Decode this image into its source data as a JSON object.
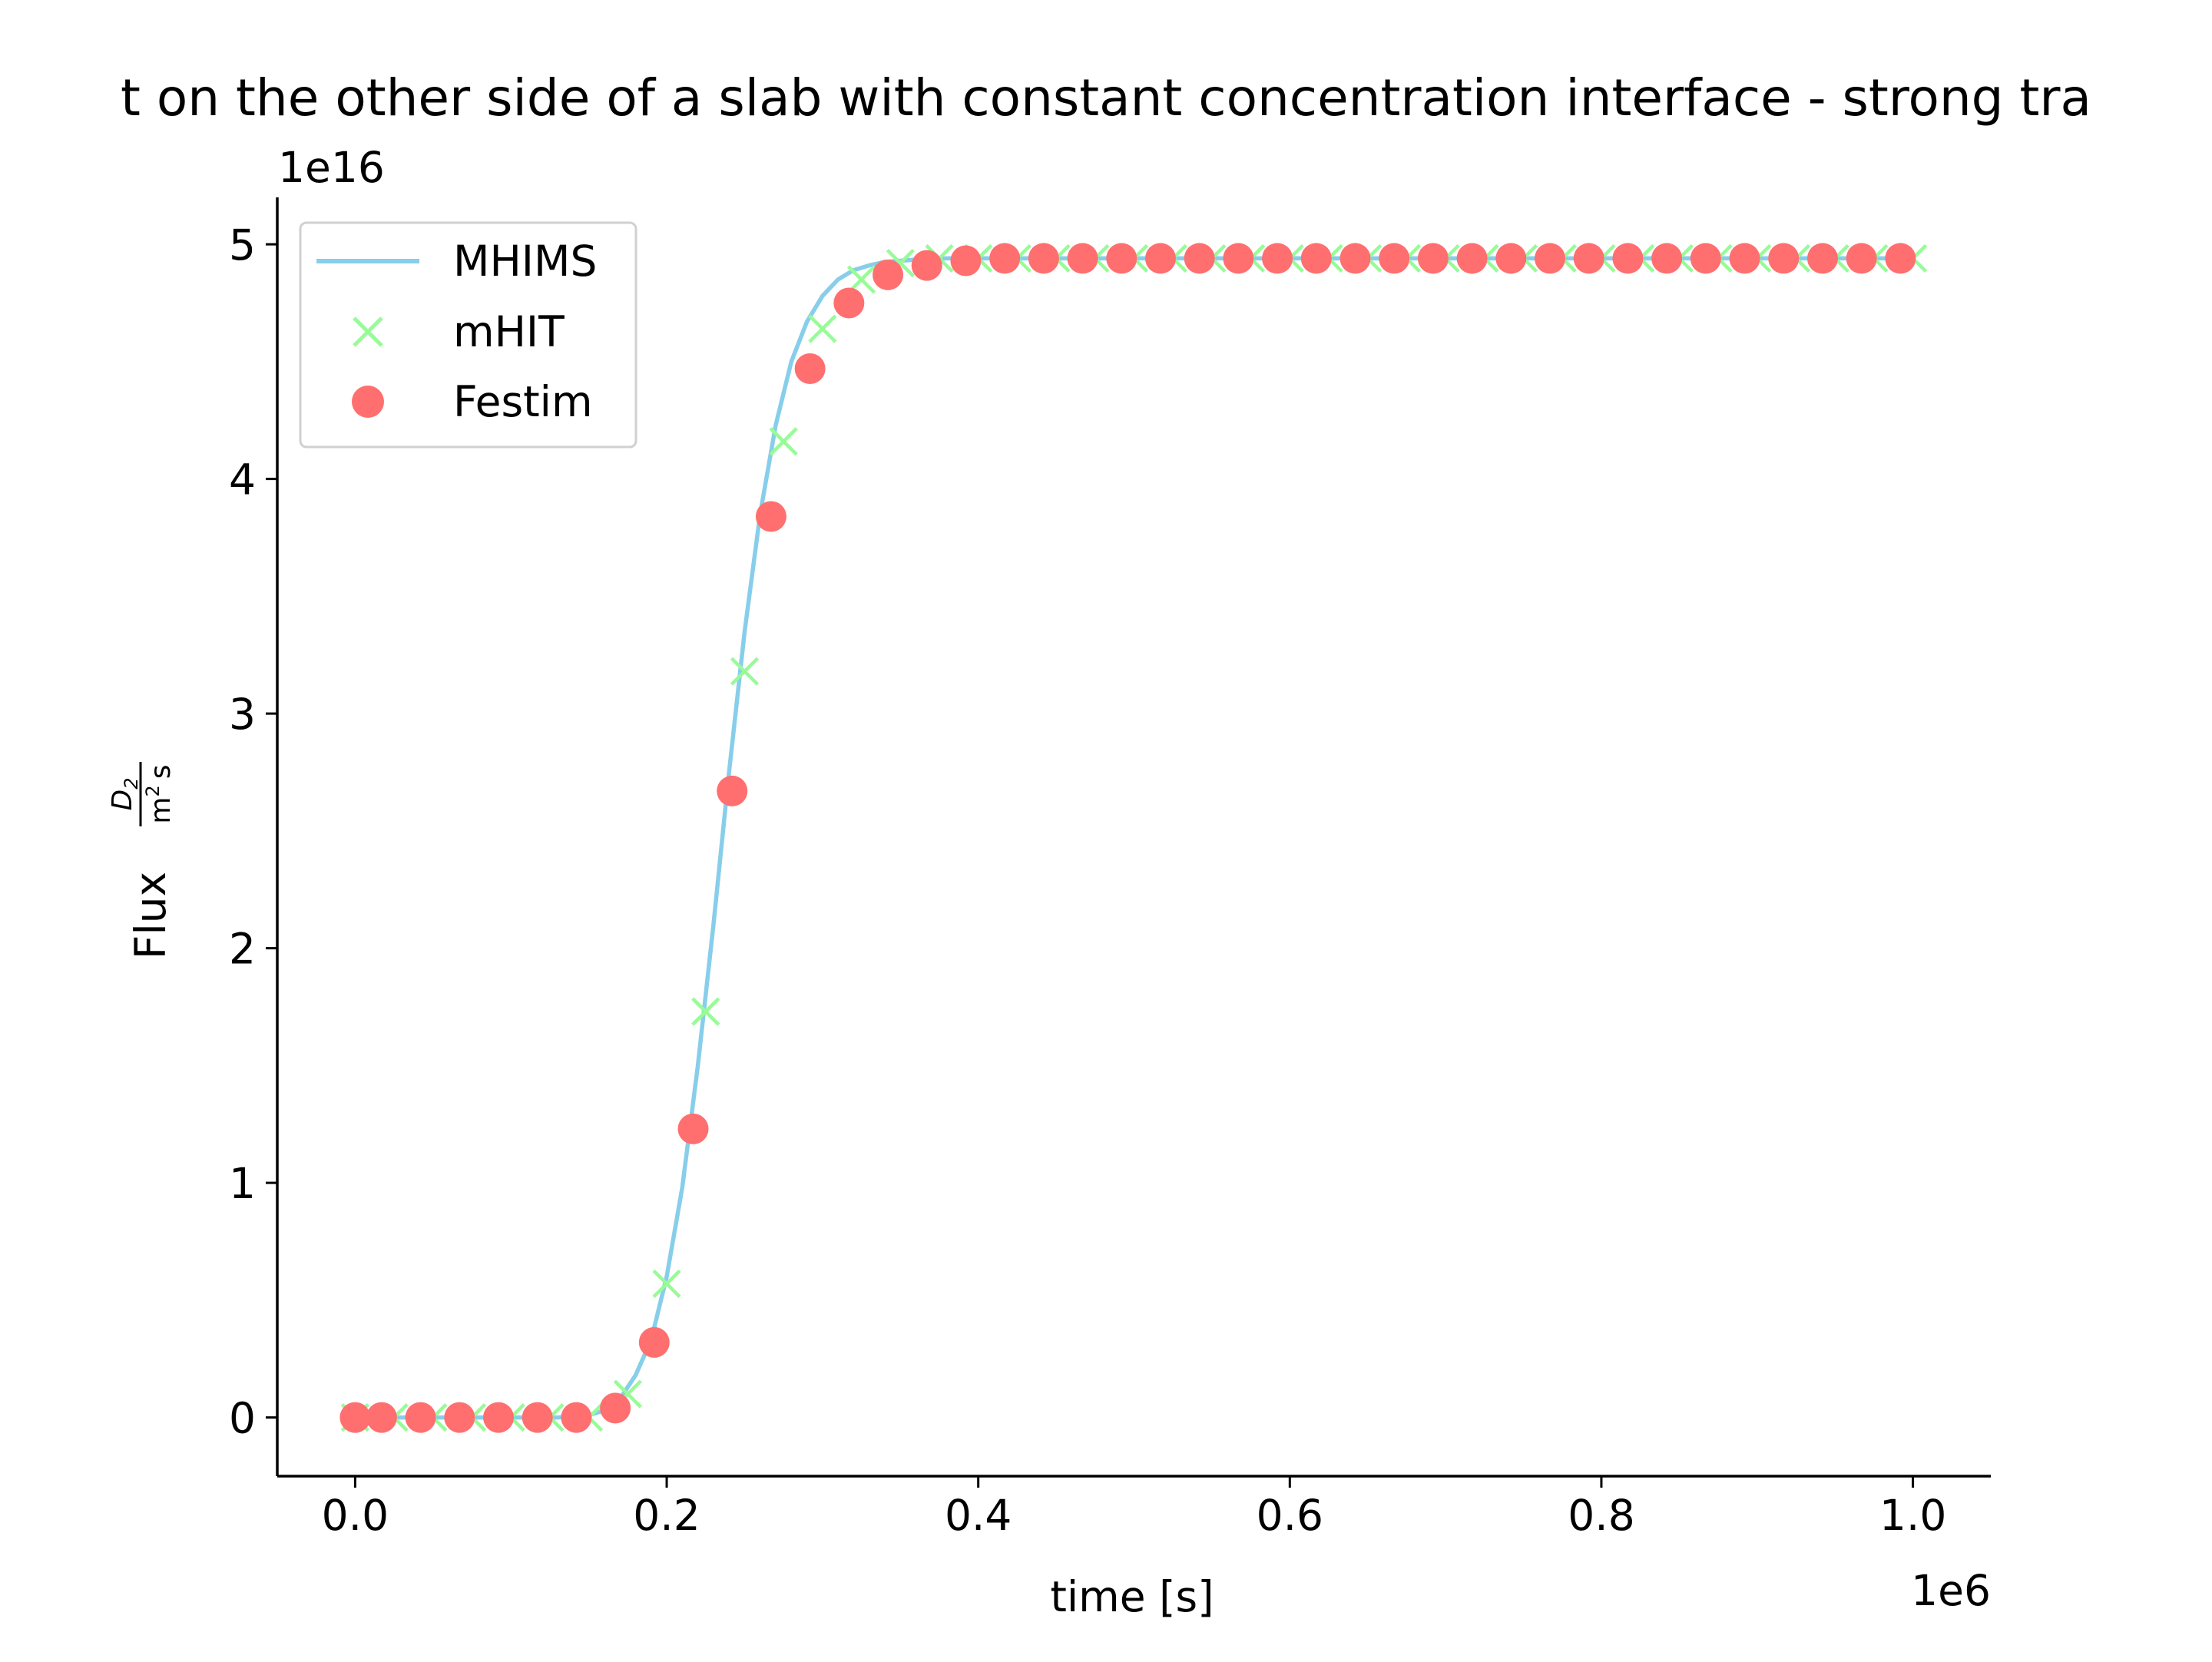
{
  "chart_data": {
    "type": "line",
    "title": "Permeation flux on the other side of a slab with constant concentration interface - strong trapping",
    "title_visible": "t on the other side of a slab with constant concentration interface - strong tra",
    "xlabel": "time [s]",
    "ylabel_prefix": "Flux",
    "ylabel_fraction_numerator": "D",
    "ylabel_fraction_numerator_sub": "2",
    "ylabel_fraction_denominator_m": "m",
    "ylabel_fraction_denominator_exp": "2",
    "ylabel_fraction_denominator_s": "s",
    "x_offset_label": "1e6",
    "y_offset_label": "1e16",
    "x_scale": 1000000,
    "y_scale": 1e+16,
    "xlim": [
      -0.05,
      1.05
    ],
    "ylim": [
      -0.25,
      5.2
    ],
    "x_ticks": [
      0.0,
      0.2,
      0.4,
      0.6,
      0.8,
      1.0
    ],
    "x_tick_labels": [
      "0.0",
      "0.2",
      "0.4",
      "0.6",
      "0.8",
      "1.0"
    ],
    "y_ticks": [
      0,
      1,
      2,
      3,
      4,
      5
    ],
    "y_tick_labels": [
      "0",
      "1",
      "2",
      "3",
      "4",
      "5"
    ],
    "grid": false,
    "legend_position": "top-left",
    "series": [
      {
        "name": "MHIMS",
        "style": "line",
        "color": "#87CEEB",
        "x": [
          0.0,
          0.05,
          0.1,
          0.13,
          0.15,
          0.16,
          0.17,
          0.18,
          0.19,
          0.2,
          0.21,
          0.22,
          0.23,
          0.24,
          0.25,
          0.26,
          0.27,
          0.28,
          0.29,
          0.3,
          0.31,
          0.32,
          0.33,
          0.34,
          0.35,
          0.36,
          0.38,
          0.4,
          0.45,
          0.5,
          0.6,
          0.7,
          0.8,
          0.9,
          1.0
        ],
        "y": [
          0.0,
          0.0,
          0.0,
          0.0,
          0.01,
          0.03,
          0.08,
          0.18,
          0.33,
          0.6,
          0.98,
          1.5,
          2.1,
          2.75,
          3.35,
          3.85,
          4.23,
          4.5,
          4.67,
          4.78,
          4.85,
          4.89,
          4.91,
          4.925,
          4.93,
          4.935,
          4.94,
          4.94,
          4.94,
          4.94,
          4.94,
          4.94,
          4.94,
          4.94,
          4.94
        ]
      },
      {
        "name": "mHIT",
        "style": "marker-x",
        "color": "#98FB98",
        "x": [
          0.0,
          0.025,
          0.05,
          0.075,
          0.1,
          0.125,
          0.15,
          0.175,
          0.2,
          0.225,
          0.25,
          0.275,
          0.3,
          0.325,
          0.35,
          0.375,
          0.4,
          0.425,
          0.45,
          0.475,
          0.5,
          0.525,
          0.55,
          0.575,
          0.6,
          0.625,
          0.65,
          0.675,
          0.7,
          0.725,
          0.75,
          0.775,
          0.8,
          0.825,
          0.85,
          0.875,
          0.9,
          0.925,
          0.95,
          0.975,
          1.0
        ],
        "y": [
          0.0,
          0.0,
          0.0,
          0.0,
          0.0,
          0.0,
          0.0,
          0.1,
          0.57,
          1.73,
          3.18,
          4.16,
          4.64,
          4.85,
          4.92,
          4.94,
          4.94,
          4.94,
          4.94,
          4.94,
          4.94,
          4.94,
          4.94,
          4.94,
          4.94,
          4.94,
          4.94,
          4.94,
          4.94,
          4.94,
          4.94,
          4.94,
          4.94,
          4.94,
          4.94,
          4.94,
          4.94,
          4.94,
          4.94,
          4.94,
          4.94
        ]
      },
      {
        "name": "Festim",
        "style": "marker-circle",
        "color": "#FF6F6F",
        "x": [
          0.0,
          0.017,
          0.042,
          0.067,
          0.092,
          0.117,
          0.142,
          0.167,
          0.192,
          0.217,
          0.242,
          0.267,
          0.292,
          0.317,
          0.342,
          0.367,
          0.392,
          0.417,
          0.442,
          0.467,
          0.492,
          0.517,
          0.542,
          0.567,
          0.592,
          0.617,
          0.642,
          0.667,
          0.692,
          0.717,
          0.742,
          0.767,
          0.792,
          0.817,
          0.842,
          0.867,
          0.892,
          0.917,
          0.942,
          0.967,
          0.992
        ],
        "y": [
          0.0,
          0.0,
          0.0,
          0.0,
          0.0,
          0.0,
          0.0,
          0.04,
          0.32,
          1.23,
          2.67,
          3.84,
          4.47,
          4.75,
          4.87,
          4.91,
          4.93,
          4.94,
          4.94,
          4.94,
          4.94,
          4.94,
          4.94,
          4.94,
          4.94,
          4.94,
          4.94,
          4.94,
          4.94,
          4.94,
          4.94,
          4.94,
          4.94,
          4.94,
          4.94,
          4.94,
          4.94,
          4.94,
          4.94,
          4.94,
          4.94
        ]
      }
    ]
  }
}
